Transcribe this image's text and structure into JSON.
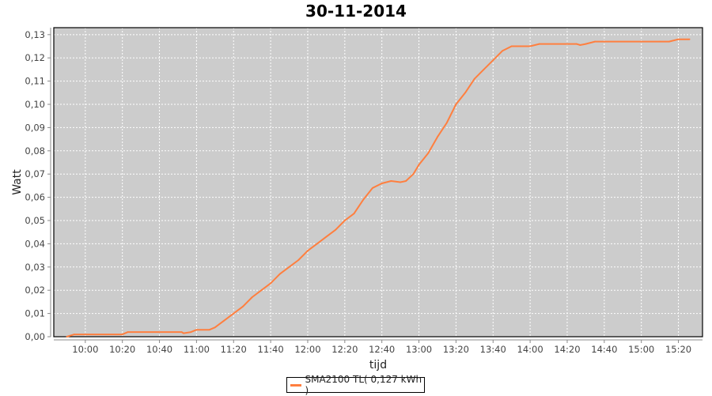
{
  "chart_data": {
    "type": "line",
    "title": "30-11-2014",
    "xlabel": "tijd",
    "ylabel": "Watt",
    "xlim": [
      "09:43",
      "15:33"
    ],
    "ylim": [
      0,
      0.133
    ],
    "grid": true,
    "legend_position": "bottom",
    "x_ticks": [
      "10:00",
      "10:20",
      "10:40",
      "11:00",
      "11:20",
      "11:40",
      "12:00",
      "12:20",
      "12:40",
      "13:00",
      "13:20",
      "13:40",
      "14:00",
      "14:20",
      "14:40",
      "15:00",
      "15:20"
    ],
    "y_ticks": [
      "0,00",
      "0,01",
      "0,02",
      "0,03",
      "0,04",
      "0,05",
      "0,06",
      "0,07",
      "0,08",
      "0,09",
      "0,10",
      "0,11",
      "0,12",
      "0,13"
    ],
    "series": [
      {
        "name": "SMA2100 TL( 0,127 kWh )",
        "color": "#ff7f3f",
        "x": [
          "09:50",
          "09:54",
          "10:20",
          "10:23",
          "10:52",
          "10:53",
          "10:57",
          "11:00",
          "11:07",
          "11:10",
          "11:15",
          "11:20",
          "11:25",
          "11:30",
          "11:35",
          "11:40",
          "11:45",
          "11:50",
          "11:55",
          "12:00",
          "12:05",
          "12:10",
          "12:15",
          "12:20",
          "12:25",
          "12:30",
          "12:35",
          "12:40",
          "12:45",
          "12:50",
          "12:53",
          "12:57",
          "13:00",
          "13:05",
          "13:10",
          "13:15",
          "13:20",
          "13:25",
          "13:30",
          "13:35",
          "13:40",
          "13:45",
          "13:50",
          "13:55",
          "14:00",
          "14:05",
          "14:25",
          "14:27",
          "14:30",
          "14:35",
          "14:40",
          "15:10",
          "15:15",
          "15:20",
          "15:26"
        ],
        "y": [
          0.0,
          0.001,
          0.001,
          0.002,
          0.002,
          0.0015,
          0.002,
          0.003,
          0.003,
          0.004,
          0.007,
          0.01,
          0.013,
          0.017,
          0.02,
          0.023,
          0.027,
          0.03,
          0.033,
          0.037,
          0.04,
          0.043,
          0.046,
          0.05,
          0.053,
          0.059,
          0.064,
          0.066,
          0.067,
          0.0665,
          0.067,
          0.07,
          0.074,
          0.079,
          0.086,
          0.092,
          0.1,
          0.105,
          0.111,
          0.115,
          0.119,
          0.123,
          0.125,
          0.125,
          0.125,
          0.126,
          0.126,
          0.1255,
          0.126,
          0.127,
          0.127,
          0.127,
          0.127,
          0.128,
          0.128
        ]
      }
    ]
  }
}
